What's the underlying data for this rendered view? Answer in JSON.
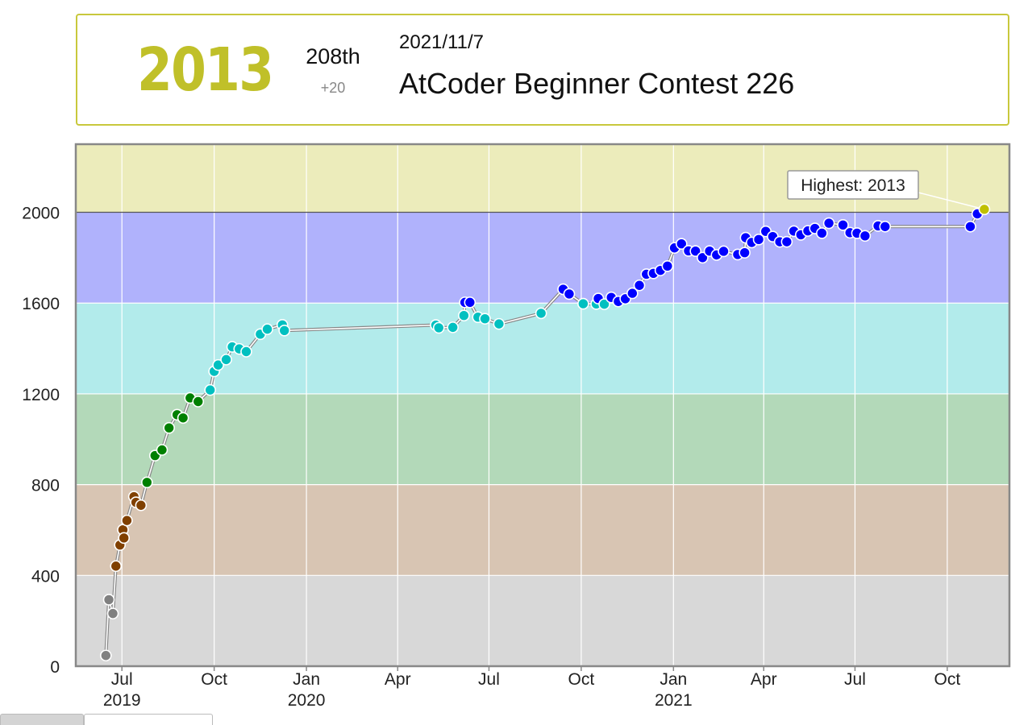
{
  "header": {
    "rating": "2013",
    "rank": "208th",
    "diff": "+20",
    "date": "2021/11/7",
    "contest": "AtCoder Beginner Contest 226"
  },
  "colors": {
    "gray": "#d8d8d8",
    "brown": "#d8c5b3",
    "green": "#b3d9b9",
    "cyan": "#b2ebeb",
    "blue": "#b0b2fc",
    "yellow": "#ececbb",
    "dot_gray": "#808080",
    "dot_brown": "#804000",
    "dot_green": "#008000",
    "dot_cyan": "#00c0c0",
    "dot_blue": "#0000ff",
    "dot_yellow": "#c0c000"
  },
  "chart_data": {
    "type": "line",
    "title": "",
    "xlabel": "",
    "ylabel": "",
    "ylim": [
      0,
      2300
    ],
    "xlim": [
      "2019-05-16",
      "2021-12-02"
    ],
    "y_ticks": [
      0,
      400,
      800,
      1200,
      1600,
      2000
    ],
    "x_ticks": [
      {
        "date": "2019-07-01",
        "label": "Jul",
        "year": "2019"
      },
      {
        "date": "2019-10-01",
        "label": "Oct",
        "year": ""
      },
      {
        "date": "2020-01-01",
        "label": "Jan",
        "year": "2020"
      },
      {
        "date": "2020-04-01",
        "label": "Apr",
        "year": ""
      },
      {
        "date": "2020-07-01",
        "label": "Jul",
        "year": ""
      },
      {
        "date": "2020-10-01",
        "label": "Oct",
        "year": ""
      },
      {
        "date": "2021-01-01",
        "label": "Jan",
        "year": "2021"
      },
      {
        "date": "2021-04-01",
        "label": "Apr",
        "year": ""
      },
      {
        "date": "2021-07-01",
        "label": "Jul",
        "year": ""
      },
      {
        "date": "2021-10-01",
        "label": "Oct",
        "year": ""
      }
    ],
    "bands": [
      {
        "from": 0,
        "to": 400,
        "color": "gray"
      },
      {
        "from": 400,
        "to": 800,
        "color": "brown"
      },
      {
        "from": 800,
        "to": 1200,
        "color": "green"
      },
      {
        "from": 1200,
        "to": 1600,
        "color": "cyan"
      },
      {
        "from": 1600,
        "to": 2000,
        "color": "blue"
      },
      {
        "from": 2000,
        "to": 2300,
        "color": "yellow"
      }
    ],
    "highest": {
      "label": "Highest: 2013",
      "value": 2013,
      "date": "2021-11-07"
    },
    "series": [
      {
        "points": [
          [
            "2019-06-15",
            47
          ],
          [
            "2019-06-18",
            293
          ],
          [
            "2019-06-22",
            232
          ],
          [
            "2019-06-25",
            441
          ],
          [
            "2019-06-29",
            534
          ],
          [
            "2019-07-02",
            601
          ],
          [
            "2019-07-03",
            565
          ],
          [
            "2019-07-06",
            642
          ],
          [
            "2019-07-13",
            747
          ],
          [
            "2019-07-15",
            722
          ],
          [
            "2019-07-20",
            709
          ],
          [
            "2019-07-26",
            810
          ],
          [
            "2019-08-03",
            928
          ],
          [
            "2019-08-10",
            953
          ],
          [
            "2019-08-17",
            1050
          ],
          [
            "2019-08-25",
            1108
          ],
          [
            "2019-08-31",
            1094
          ],
          [
            "2019-09-07",
            1182
          ],
          [
            "2019-09-15",
            1166
          ],
          [
            "2019-09-27",
            1217
          ],
          [
            "2019-10-01",
            1299
          ],
          [
            "2019-10-05",
            1327
          ],
          [
            "2019-10-13",
            1351
          ],
          [
            "2019-10-19",
            1407
          ],
          [
            "2019-10-26",
            1398
          ],
          [
            "2019-11-02",
            1386
          ],
          [
            "2019-11-16",
            1463
          ],
          [
            "2019-11-23",
            1485
          ],
          [
            "2019-12-08",
            1504
          ],
          [
            "2019-12-10",
            1479
          ],
          [
            "2020-05-09",
            1503
          ],
          [
            "2020-05-12",
            1491
          ],
          [
            "2020-05-26",
            1493
          ],
          [
            "2020-06-06",
            1545
          ],
          [
            "2020-06-07",
            1603
          ],
          [
            "2020-06-12",
            1603
          ],
          [
            "2020-06-20",
            1538
          ],
          [
            "2020-06-27",
            1531
          ],
          [
            "2020-07-11",
            1508
          ],
          [
            "2020-08-22",
            1555
          ],
          [
            "2020-09-13",
            1661
          ],
          [
            "2020-09-19",
            1640
          ],
          [
            "2020-10-03",
            1597
          ],
          [
            "2020-10-16",
            1596
          ],
          [
            "2020-10-18",
            1620
          ],
          [
            "2020-10-24",
            1595
          ],
          [
            "2020-10-31",
            1625
          ],
          [
            "2020-11-07",
            1607
          ],
          [
            "2020-11-14",
            1619
          ],
          [
            "2020-11-21",
            1643
          ],
          [
            "2020-11-28",
            1678
          ],
          [
            "2020-12-05",
            1727
          ],
          [
            "2020-12-12",
            1731
          ],
          [
            "2020-12-19",
            1744
          ],
          [
            "2020-12-26",
            1763
          ],
          [
            "2021-01-02",
            1843
          ],
          [
            "2021-01-09",
            1861
          ],
          [
            "2021-01-16",
            1830
          ],
          [
            "2021-01-23",
            1829
          ],
          [
            "2021-01-30",
            1800
          ],
          [
            "2021-02-06",
            1829
          ],
          [
            "2021-02-13",
            1812
          ],
          [
            "2021-02-20",
            1828
          ],
          [
            "2021-03-06",
            1814
          ],
          [
            "2021-03-13",
            1822
          ],
          [
            "2021-03-14",
            1888
          ],
          [
            "2021-03-20",
            1867
          ],
          [
            "2021-03-27",
            1880
          ],
          [
            "2021-04-03",
            1916
          ],
          [
            "2021-04-10",
            1893
          ],
          [
            "2021-04-17",
            1870
          ],
          [
            "2021-04-24",
            1870
          ],
          [
            "2021-05-01",
            1917
          ],
          [
            "2021-05-08",
            1901
          ],
          [
            "2021-05-15",
            1918
          ],
          [
            "2021-05-22",
            1929
          ],
          [
            "2021-05-29",
            1908
          ],
          [
            "2021-06-05",
            1952
          ],
          [
            "2021-06-19",
            1944
          ],
          [
            "2021-06-26",
            1910
          ],
          [
            "2021-07-03",
            1908
          ],
          [
            "2021-07-11",
            1896
          ],
          [
            "2021-07-24",
            1940
          ],
          [
            "2021-07-31",
            1937
          ],
          [
            "2021-10-24",
            1937
          ],
          [
            "2021-10-31",
            1993
          ],
          [
            "2021-11-07",
            2013
          ]
        ]
      }
    ]
  }
}
